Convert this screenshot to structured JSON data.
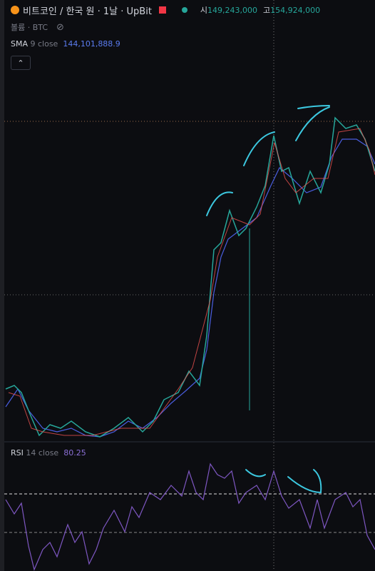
{
  "header": {
    "symbol": "비트코인 / 한국 원 · 1날 · UpBit",
    "open_label": "시",
    "open": "149,243,000",
    "high_label": "고",
    "high": "154,924,000"
  },
  "volume": "볼륨 · BTC",
  "sma": {
    "name": "SMA",
    "params": "9 close",
    "value": "144,101,888.9"
  },
  "rsi": {
    "name": "RSI",
    "params": "14 close",
    "value": "80.25"
  }
}
